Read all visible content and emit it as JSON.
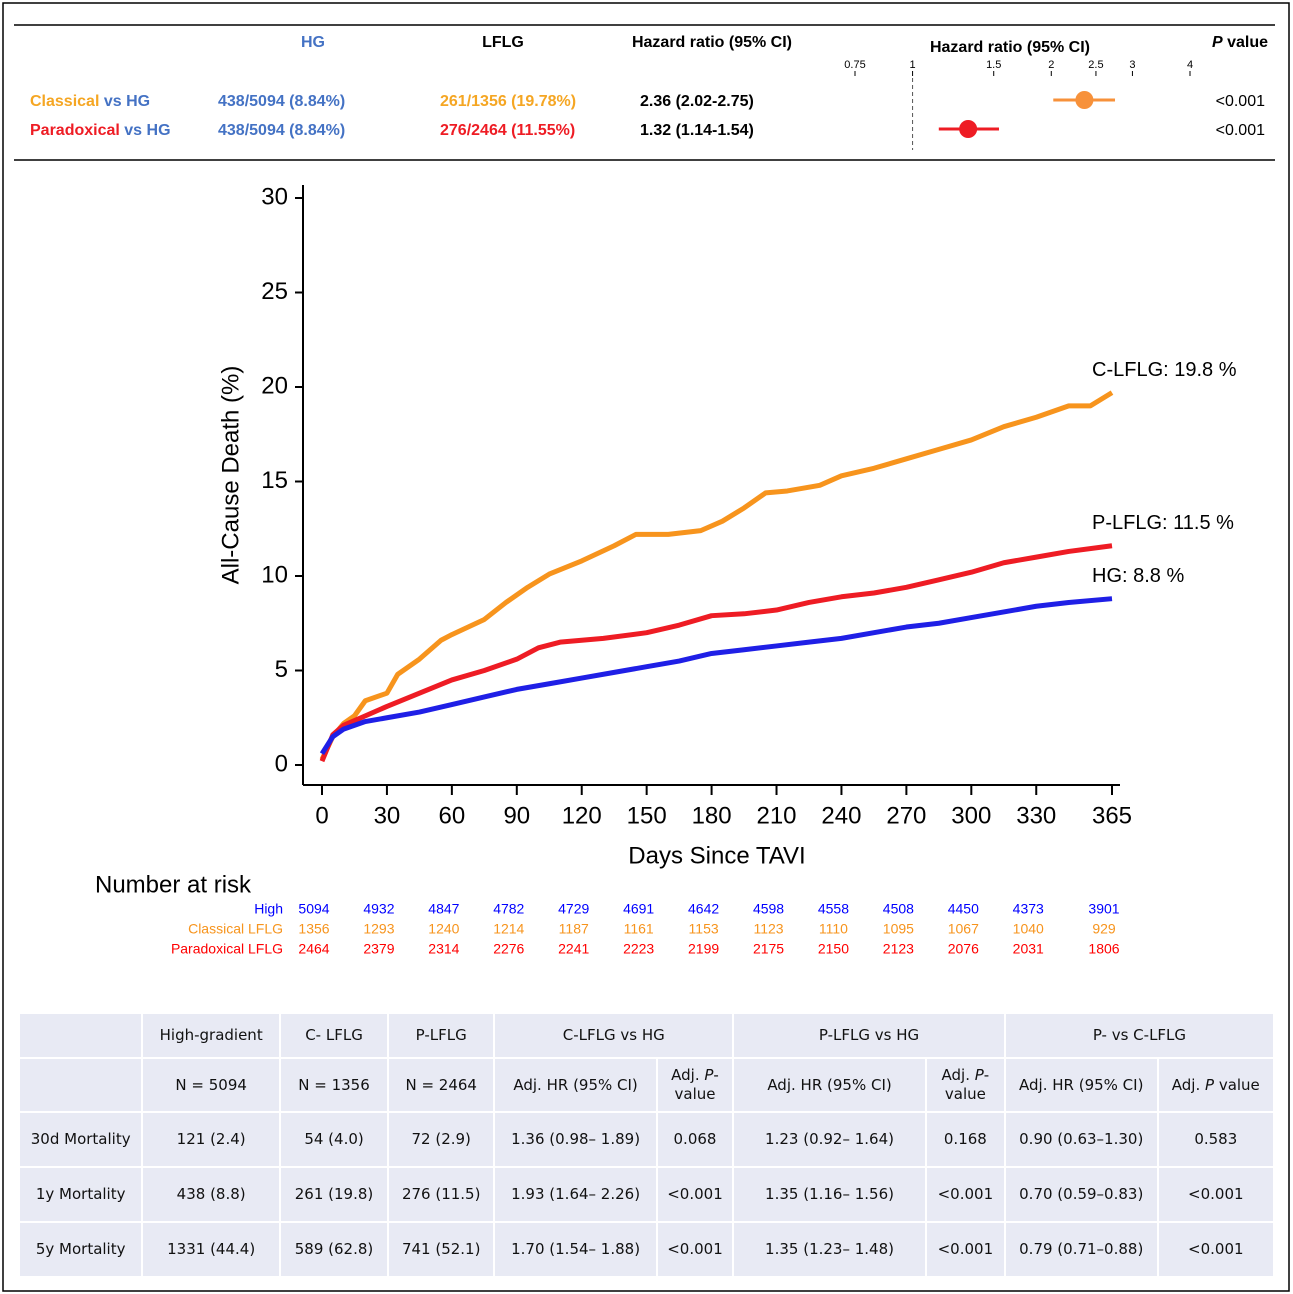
{
  "forest": {
    "headers": {
      "hg": "HG",
      "lflg": "LFLG",
      "hr": "Hazard ratio (95% CI)",
      "plot": "Hazard ratio (95% CI)",
      "p_italic": "P",
      "p_rest": " value"
    },
    "xlim": [
      0.75,
      4
    ],
    "xticks": [
      0.75,
      1,
      1.5,
      2,
      2.5,
      3,
      4
    ],
    "rows": [
      {
        "group": "Classical",
        "vs": " vs ",
        "ref": "HG",
        "hg": "438/5094 (8.84%)",
        "lflg": "261/1356 (19.78%)",
        "hr_label": "2.36 (2.02-2.75)",
        "hr": 2.36,
        "lo": 2.02,
        "hi": 2.75,
        "p": "<0.001",
        "color": "#f5a623",
        "marker": "#f7913a"
      },
      {
        "group": "Paradoxical",
        "vs": " vs ",
        "ref": "HG",
        "hg": "438/5094 (8.84%)",
        "lflg": "276/2464 (11.55%)",
        "hr_label": "1.32 (1.14-1.54)",
        "hr": 1.32,
        "lo": 1.14,
        "hi": 1.54,
        "p": "<0.001",
        "color": "#ee1c24",
        "marker": "#ee1c24"
      }
    ]
  },
  "chart_data": {
    "type": "line",
    "xlabel": "Days Since TAVI",
    "ylabel": "All-Cause Death (%)",
    "xlim": [
      0,
      365
    ],
    "xticks": [
      0,
      30,
      60,
      90,
      120,
      150,
      180,
      210,
      240,
      270,
      300,
      330,
      365
    ],
    "ylim": [
      0,
      30
    ],
    "yticks": [
      0,
      5,
      10,
      15,
      20,
      25,
      30
    ],
    "series": [
      {
        "color": "#f7941d",
        "x": [
          0,
          5,
          10,
          15,
          20,
          30,
          35,
          45,
          55,
          60,
          75,
          85,
          95,
          105,
          120,
          135,
          145,
          160,
          175,
          185,
          195,
          205,
          215,
          230,
          240,
          255,
          270,
          285,
          300,
          315,
          330,
          345,
          355,
          365
        ],
        "values": [
          0.3,
          1.5,
          2.2,
          2.6,
          3.4,
          3.8,
          4.8,
          5.6,
          6.6,
          6.9,
          7.7,
          8.6,
          9.4,
          10.1,
          10.8,
          11.6,
          12.2,
          12.2,
          12.4,
          12.9,
          13.6,
          14.4,
          14.5,
          14.8,
          15.3,
          15.7,
          16.2,
          16.7,
          17.2,
          17.9,
          18.4,
          19.0,
          19.0,
          19.7
        ]
      },
      {
        "color": "#ee1c24",
        "x": [
          0,
          5,
          10,
          20,
          30,
          45,
          60,
          75,
          90,
          100,
          110,
          130,
          150,
          165,
          180,
          195,
          210,
          225,
          240,
          255,
          270,
          285,
          300,
          315,
          330,
          345,
          365
        ],
        "values": [
          0.2,
          1.6,
          2.1,
          2.6,
          3.1,
          3.8,
          4.5,
          5.0,
          5.6,
          6.2,
          6.5,
          6.7,
          7.0,
          7.4,
          7.9,
          8.0,
          8.2,
          8.6,
          8.9,
          9.1,
          9.4,
          9.8,
          10.2,
          10.7,
          11.0,
          11.3,
          11.6
        ]
      },
      {
        "color": "#1f1fe6",
        "x": [
          0,
          5,
          10,
          20,
          30,
          45,
          60,
          75,
          90,
          105,
          120,
          135,
          150,
          165,
          180,
          195,
          210,
          225,
          240,
          255,
          270,
          285,
          300,
          315,
          330,
          345,
          365
        ],
        "values": [
          0.6,
          1.5,
          1.9,
          2.3,
          2.5,
          2.8,
          3.2,
          3.6,
          4.0,
          4.3,
          4.6,
          4.9,
          5.2,
          5.5,
          5.9,
          6.1,
          6.3,
          6.5,
          6.7,
          7.0,
          7.3,
          7.5,
          7.8,
          8.1,
          8.4,
          8.6,
          8.8
        ]
      }
    ],
    "annotations": [
      "C-LFLG: 19.8 %",
      "P-LFLG: 11.5 %",
      "HG: 8.8 %"
    ]
  },
  "number_at_risk": {
    "title": "Number at risk",
    "rows": [
      {
        "label": "High",
        "color": "#0000ff",
        "values": [
          5094,
          4932,
          4847,
          4782,
          4729,
          4691,
          4642,
          4598,
          4558,
          4508,
          4450,
          4373,
          3901
        ]
      },
      {
        "label": "Classical LFLG",
        "color": "#f7941d",
        "values": [
          1356,
          1293,
          1240,
          1214,
          1187,
          1161,
          1153,
          1123,
          1110,
          1095,
          1067,
          1040,
          929
        ]
      },
      {
        "label": "Paradoxical LFLG",
        "color": "#ff0000",
        "values": [
          2464,
          2379,
          2314,
          2276,
          2241,
          2223,
          2199,
          2175,
          2150,
          2123,
          2076,
          2031,
          1806
        ]
      }
    ]
  },
  "table": {
    "header1": [
      "",
      "High-gradient",
      "C- LFLG",
      "P-LFLG",
      "C-LFLG vs HG",
      "P-LFLG vs HG",
      "P- vs C-LFLG"
    ],
    "header2": [
      "",
      "N = 5094",
      "N = 1356",
      "N = 2464",
      "Adj. HR (95% CI)",
      {
        "pre": "Adj. ",
        "it": "P",
        "post": "-value"
      },
      "Adj. HR (95% CI)",
      {
        "pre": "Adj. ",
        "it": "P",
        "post": "-value"
      },
      "Adj. HR (95% CI)",
      {
        "pre": "Adj. ",
        "it": "P",
        "post": " value"
      }
    ],
    "rows": [
      [
        "30d Mortality",
        "121 (2.4)",
        "54 (4.0)",
        "72 (2.9)",
        "1.36 (0.98– 1.89)",
        "0.068",
        "1.23 (0.92– 1.64)",
        "0.168",
        "0.90 (0.63–1.30)",
        "0.583"
      ],
      [
        "1y Mortality",
        "438 (8.8)",
        "261 (19.8)",
        "276 (11.5)",
        "1.93 (1.64– 2.26)",
        "<0.001",
        "1.35 (1.16– 1.56)",
        "<0.001",
        "0.70 (0.59–0.83)",
        "<0.001"
      ],
      [
        "5y Mortality",
        "1331 (44.4)",
        "589 (62.8)",
        "741 (52.1)",
        "1.70 (1.54– 1.88)",
        "<0.001",
        "1.35 (1.23– 1.48)",
        "<0.001",
        "0.79 (0.71–0.88)",
        "<0.001"
      ]
    ]
  }
}
